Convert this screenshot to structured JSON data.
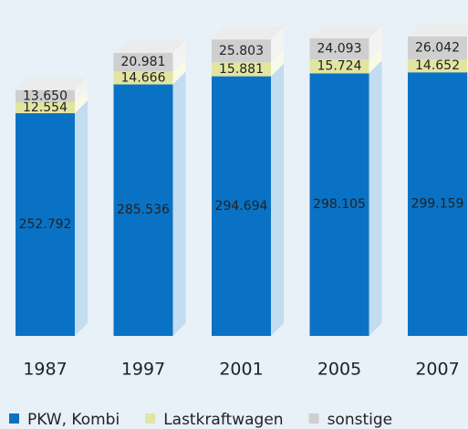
{
  "chart_data": {
    "type": "bar",
    "stacked": true,
    "categories": [
      "1987",
      "1997",
      "2001",
      "2005",
      "2007"
    ],
    "series": [
      {
        "name": "PKW, Kombi",
        "color": "#0a72c4",
        "values": [
          252792,
          285536,
          294694,
          298105,
          299159
        ],
        "value_labels": [
          "252.792",
          "285.536",
          "294.694",
          "298.105",
          "299.159"
        ]
      },
      {
        "name": "Lastkraftwagen",
        "color": "#e2e5a0",
        "values": [
          12554,
          14666,
          15881,
          15724,
          14652
        ],
        "value_labels": [
          "12.554",
          "14.666",
          "15.881",
          "15.724",
          "14.652"
        ]
      },
      {
        "name": "sonstige",
        "color": "#cfcfcf",
        "values": [
          13650,
          20981,
          25803,
          24093,
          26042
        ],
        "value_labels": [
          "13.650",
          "20.981",
          "25.803",
          "24.093",
          "26.042"
        ]
      }
    ]
  }
}
